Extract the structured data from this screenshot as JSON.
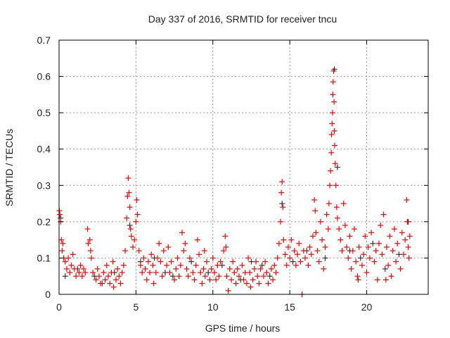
{
  "chart_data": {
    "type": "scatter",
    "title": "Day 337 of 2016, SRMTID for receiver tncu",
    "xlabel": "GPS time / hours",
    "ylabel": "SRMTID / TECUs",
    "xlim": [
      0,
      24
    ],
    "ylim": [
      0,
      0.7
    ],
    "xticks": [
      0,
      5,
      10,
      15,
      20
    ],
    "xtick_labels": [
      "0",
      "5",
      "10",
      "15",
      "20"
    ],
    "yticks": [
      0,
      0.1,
      0.2,
      0.3,
      0.4,
      0.5,
      0.6,
      0.7
    ],
    "ytick_labels": [
      "0",
      "0.1",
      "0.2",
      "0.3",
      "0.4",
      "0.5",
      "0.6",
      "0.7"
    ],
    "grid": true,
    "marker": "+",
    "series": [
      {
        "name": "grey",
        "color": "#333333",
        "points": [
          [
            0.1,
            0.21
          ],
          [
            0.4,
            0.05
          ],
          [
            1.2,
            0.07
          ],
          [
            2.8,
            0.03
          ],
          [
            3.6,
            0.06
          ],
          [
            4.6,
            0.19
          ],
          [
            5.3,
            0.09
          ],
          [
            6.2,
            0.1
          ],
          [
            7.4,
            0.05
          ],
          [
            8.6,
            0.09
          ],
          [
            9.7,
            0.06
          ],
          [
            10.6,
            0.08
          ],
          [
            11.8,
            0.04
          ],
          [
            12.5,
            0.09
          ],
          [
            13.7,
            0.05
          ],
          [
            14.5,
            0.25
          ],
          [
            15.2,
            0.09
          ],
          [
            16.1,
            0.12
          ],
          [
            17.3,
            0.1
          ],
          [
            17.9,
            0.62
          ],
          [
            18.1,
            0.35
          ],
          [
            18.9,
            0.12
          ],
          [
            19.6,
            0.1
          ],
          [
            20.4,
            0.14
          ],
          [
            21.2,
            0.07
          ],
          [
            22.1,
            0.11
          ],
          [
            22.7,
            0.2
          ],
          [
            13.2,
            0.08
          ],
          [
            6.9,
            0.06
          ],
          [
            2.3,
            0.05
          ]
        ]
      },
      {
        "name": "red",
        "color": "#ff0000",
        "points": [
          [
            0.02,
            0.23
          ],
          [
            0.05,
            0.22
          ],
          [
            0.1,
            0.2
          ],
          [
            0.15,
            0.15
          ],
          [
            0.2,
            0.12
          ],
          [
            0.25,
            0.14
          ],
          [
            0.3,
            0.1
          ],
          [
            0.4,
            0.09
          ],
          [
            0.5,
            0.07
          ],
          [
            0.6,
            0.1
          ],
          [
            0.7,
            0.06
          ],
          [
            0.8,
            0.08
          ],
          [
            0.9,
            0.11
          ],
          [
            1.0,
            0.07
          ],
          [
            1.1,
            0.05
          ],
          [
            1.3,
            0.06
          ],
          [
            1.4,
            0.08
          ],
          [
            1.5,
            0.05
          ],
          [
            1.6,
            0.07
          ],
          [
            1.7,
            0.06
          ],
          [
            1.85,
            0.18
          ],
          [
            1.9,
            0.14
          ],
          [
            2.0,
            0.15
          ],
          [
            2.05,
            0.12
          ],
          [
            2.1,
            0.1
          ],
          [
            2.2,
            0.06
          ],
          [
            2.4,
            0.04
          ],
          [
            2.5,
            0.07
          ],
          [
            2.6,
            0.05
          ],
          [
            2.7,
            0.03
          ],
          [
            2.9,
            0.06
          ],
          [
            3.0,
            0.04
          ],
          [
            3.1,
            0.08
          ],
          [
            3.2,
            0.05
          ],
          [
            3.3,
            0.03
          ],
          [
            3.4,
            0.06
          ],
          [
            3.5,
            0.09
          ],
          [
            3.7,
            0.04
          ],
          [
            3.8,
            0.07
          ],
          [
            3.9,
            0.05
          ],
          [
            4.0,
            0.03
          ],
          [
            4.1,
            0.06
          ],
          [
            4.2,
            0.08
          ],
          [
            4.3,
            0.12
          ],
          [
            4.4,
            0.21
          ],
          [
            4.45,
            0.27
          ],
          [
            4.5,
            0.32
          ],
          [
            4.55,
            0.28
          ],
          [
            4.6,
            0.24
          ],
          [
            4.65,
            0.18
          ],
          [
            4.7,
            0.16
          ],
          [
            4.8,
            0.13
          ],
          [
            4.9,
            0.15
          ],
          [
            5.0,
            0.2
          ],
          [
            5.05,
            0.26
          ],
          [
            5.1,
            0.22
          ],
          [
            5.2,
            0.12
          ],
          [
            5.3,
            0.08
          ],
          [
            5.4,
            0.06
          ],
          [
            5.5,
            0.1
          ],
          [
            5.6,
            0.07
          ],
          [
            5.7,
            0.04
          ],
          [
            5.8,
            0.09
          ],
          [
            5.9,
            0.06
          ],
          [
            6.0,
            0.11
          ],
          [
            6.1,
            0.08
          ],
          [
            6.3,
            0.06
          ],
          [
            6.4,
            0.1
          ],
          [
            6.5,
            0.14
          ],
          [
            6.6,
            0.09
          ],
          [
            6.7,
            0.05
          ],
          [
            6.8,
            0.12
          ],
          [
            7.0,
            0.08
          ],
          [
            7.1,
            0.13
          ],
          [
            7.2,
            0.06
          ],
          [
            7.3,
            0.09
          ],
          [
            7.5,
            0.04
          ],
          [
            7.6,
            0.07
          ],
          [
            7.7,
            0.1
          ],
          [
            7.8,
            0.05
          ],
          [
            7.9,
            0.08
          ],
          [
            8.0,
            0.17
          ],
          [
            8.1,
            0.12
          ],
          [
            8.2,
            0.14
          ],
          [
            8.3,
            0.07
          ],
          [
            8.4,
            0.05
          ],
          [
            8.5,
            0.1
          ],
          [
            8.7,
            0.06
          ],
          [
            8.8,
            0.04
          ],
          [
            8.9,
            0.08
          ],
          [
            9.0,
            0.15
          ],
          [
            9.1,
            0.11
          ],
          [
            9.2,
            0.06
          ],
          [
            9.3,
            0.03
          ],
          [
            9.4,
            0.07
          ],
          [
            9.5,
            0.05
          ],
          [
            9.6,
            0.09
          ],
          [
            9.8,
            0.04
          ],
          [
            9.9,
            0.07
          ],
          [
            10.0,
            0.1
          ],
          [
            10.1,
            0.06
          ],
          [
            10.2,
            0.04
          ],
          [
            10.3,
            0.08
          ],
          [
            10.4,
            0.05
          ],
          [
            10.5,
            0.09
          ],
          [
            10.7,
            0.12
          ],
          [
            10.8,
            0.16
          ],
          [
            10.85,
            0.13
          ],
          [
            10.9,
            0.05
          ],
          [
            11.0,
            0.01
          ],
          [
            11.1,
            0.07
          ],
          [
            11.2,
            0.04
          ],
          [
            11.3,
            0.09
          ],
          [
            11.4,
            0.06
          ],
          [
            11.5,
            0.03
          ],
          [
            11.6,
            0.07
          ],
          [
            11.7,
            0.05
          ],
          [
            11.9,
            0.08
          ],
          [
            12.0,
            0.04
          ],
          [
            12.1,
            0.06
          ],
          [
            12.2,
            0.03
          ],
          [
            12.3,
            0.1
          ],
          [
            12.4,
            0.06
          ],
          [
            12.6,
            0.04
          ],
          [
            12.7,
            0.07
          ],
          [
            12.8,
            0.09
          ],
          [
            12.9,
            0.05
          ],
          [
            13.0,
            0.03
          ],
          [
            13.1,
            0.07
          ],
          [
            13.3,
            0.05
          ],
          [
            13.4,
            0.09
          ],
          [
            13.5,
            0.06
          ],
          [
            13.6,
            0.03
          ],
          [
            13.8,
            0.07
          ],
          [
            13.9,
            0.04
          ],
          [
            14.0,
            0.08
          ],
          [
            14.1,
            0.06
          ],
          [
            14.2,
            0.1
          ],
          [
            14.3,
            0.14
          ],
          [
            14.4,
            0.2
          ],
          [
            14.45,
            0.28
          ],
          [
            14.5,
            0.31
          ],
          [
            14.55,
            0.24
          ],
          [
            14.6,
            0.15
          ],
          [
            14.7,
            0.11
          ],
          [
            14.8,
            0.08
          ],
          [
            14.9,
            0.13
          ],
          [
            15.0,
            0.1
          ],
          [
            15.1,
            0.15
          ],
          [
            15.3,
            0.12
          ],
          [
            15.4,
            0.08
          ],
          [
            15.5,
            0.11
          ],
          [
            15.6,
            0.14
          ],
          [
            15.7,
            0.09
          ],
          [
            15.8,
            0.0
          ],
          [
            15.9,
            0.12
          ],
          [
            16.0,
            0.1
          ],
          [
            16.2,
            0.08
          ],
          [
            16.3,
            0.13
          ],
          [
            16.4,
            0.11
          ],
          [
            16.5,
            0.16
          ],
          [
            16.6,
            0.26
          ],
          [
            16.65,
            0.23
          ],
          [
            16.7,
            0.17
          ],
          [
            16.8,
            0.12
          ],
          [
            16.9,
            0.09
          ],
          [
            17.0,
            0.2
          ],
          [
            17.1,
            0.15
          ],
          [
            17.2,
            0.07
          ],
          [
            17.3,
            0.13
          ],
          [
            17.4,
            0.22
          ],
          [
            17.5,
            0.18
          ],
          [
            17.55,
            0.25
          ],
          [
            17.6,
            0.3
          ],
          [
            17.65,
            0.34
          ],
          [
            17.7,
            0.39
          ],
          [
            17.72,
            0.44
          ],
          [
            17.75,
            0.47
          ],
          [
            17.78,
            0.5
          ],
          [
            17.8,
            0.55
          ],
          [
            17.82,
            0.585
          ],
          [
            17.85,
            0.615
          ],
          [
            17.88,
            0.53
          ],
          [
            17.9,
            0.45
          ],
          [
            17.92,
            0.41
          ],
          [
            17.95,
            0.36
          ],
          [
            18.0,
            0.3
          ],
          [
            18.05,
            0.24
          ],
          [
            18.1,
            0.21
          ],
          [
            18.2,
            0.18
          ],
          [
            18.3,
            0.15
          ],
          [
            18.4,
            0.12
          ],
          [
            18.5,
            0.25
          ],
          [
            18.6,
            0.19
          ],
          [
            18.7,
            0.13
          ],
          [
            18.8,
            0.1
          ],
          [
            18.9,
            0.16
          ],
          [
            19.0,
            0.07
          ],
          [
            19.1,
            0.12
          ],
          [
            19.2,
            0.18
          ],
          [
            19.3,
            0.09
          ],
          [
            19.4,
            0.05
          ],
          [
            19.5,
            0.13
          ],
          [
            19.7,
            0.08
          ],
          [
            19.8,
            0.11
          ],
          [
            19.9,
            0.16
          ],
          [
            20.0,
            0.06
          ],
          [
            20.1,
            0.13
          ],
          [
            20.2,
            0.1
          ],
          [
            20.3,
            0.17
          ],
          [
            20.5,
            0.09
          ],
          [
            20.6,
            0.12
          ],
          [
            20.7,
            0.04
          ],
          [
            20.8,
            0.14
          ],
          [
            20.9,
            0.19
          ],
          [
            21.0,
            0.11
          ],
          [
            21.1,
            0.22
          ],
          [
            21.3,
            0.13
          ],
          [
            21.4,
            0.08
          ],
          [
            21.5,
            0.16
          ],
          [
            21.6,
            0.05
          ],
          [
            21.7,
            0.12
          ],
          [
            21.8,
            0.18
          ],
          [
            21.9,
            0.09
          ],
          [
            22.0,
            0.14
          ],
          [
            22.2,
            0.07
          ],
          [
            22.3,
            0.17
          ],
          [
            22.4,
            0.11
          ],
          [
            22.5,
            0.15
          ],
          [
            22.6,
            0.26
          ],
          [
            22.65,
            0.2
          ],
          [
            22.7,
            0.13
          ],
          [
            22.75,
            0.1
          ],
          [
            22.8,
            0.16
          ],
          [
            3.55,
            0.02
          ],
          [
            6.15,
            0.03
          ],
          [
            12.45,
            0.02
          ],
          [
            19.45,
            0.04
          ],
          [
            21.25,
            0.04
          ],
          [
            9.45,
            0.12
          ]
        ]
      }
    ]
  }
}
